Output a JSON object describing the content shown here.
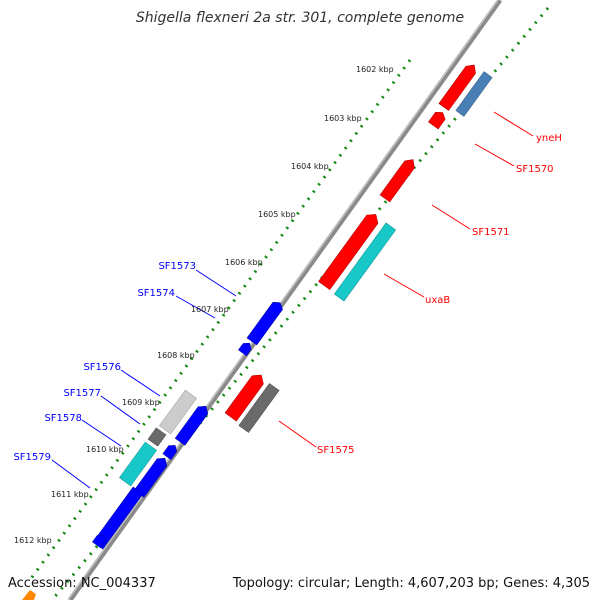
{
  "title": "Shigella flexneri 2a str. 301, complete genome",
  "accession": "Accession: NC_004337",
  "topology": "Topology: circular; Length: 4,607,203 bp; Genes: 4,305",
  "scale_labels": [
    "1602 kbp",
    "1603 kbp",
    "1604 kbp",
    "1605 kbp",
    "1606 kbp",
    "1607 kbp",
    "1608 kbp",
    "1609 kbp",
    "1610 kbp",
    "1611 kbp",
    "1612 kbp"
  ],
  "gene_labels": {
    "yneH": "yneH",
    "SF1570": "SF1570",
    "SF1571": "SF1571",
    "uxaB": "uxaB",
    "SF1573": "SF1573",
    "SF1574": "SF1574",
    "SF1575": "SF1575",
    "SF1576": "SF1576",
    "SF1577": "SF1577",
    "SF1578": "SF1578",
    "SF1579": "SF1579"
  },
  "colors": {
    "forward": "#ff0000",
    "reverse": "#0000ff",
    "steelblue": "#4a7fb5",
    "cyan": "#18c8c8",
    "gray": "#6a6a6a",
    "lightgray": "#cccccc",
    "dots": "#118811",
    "backbone": "#888888",
    "orange": "#ff8800"
  }
}
